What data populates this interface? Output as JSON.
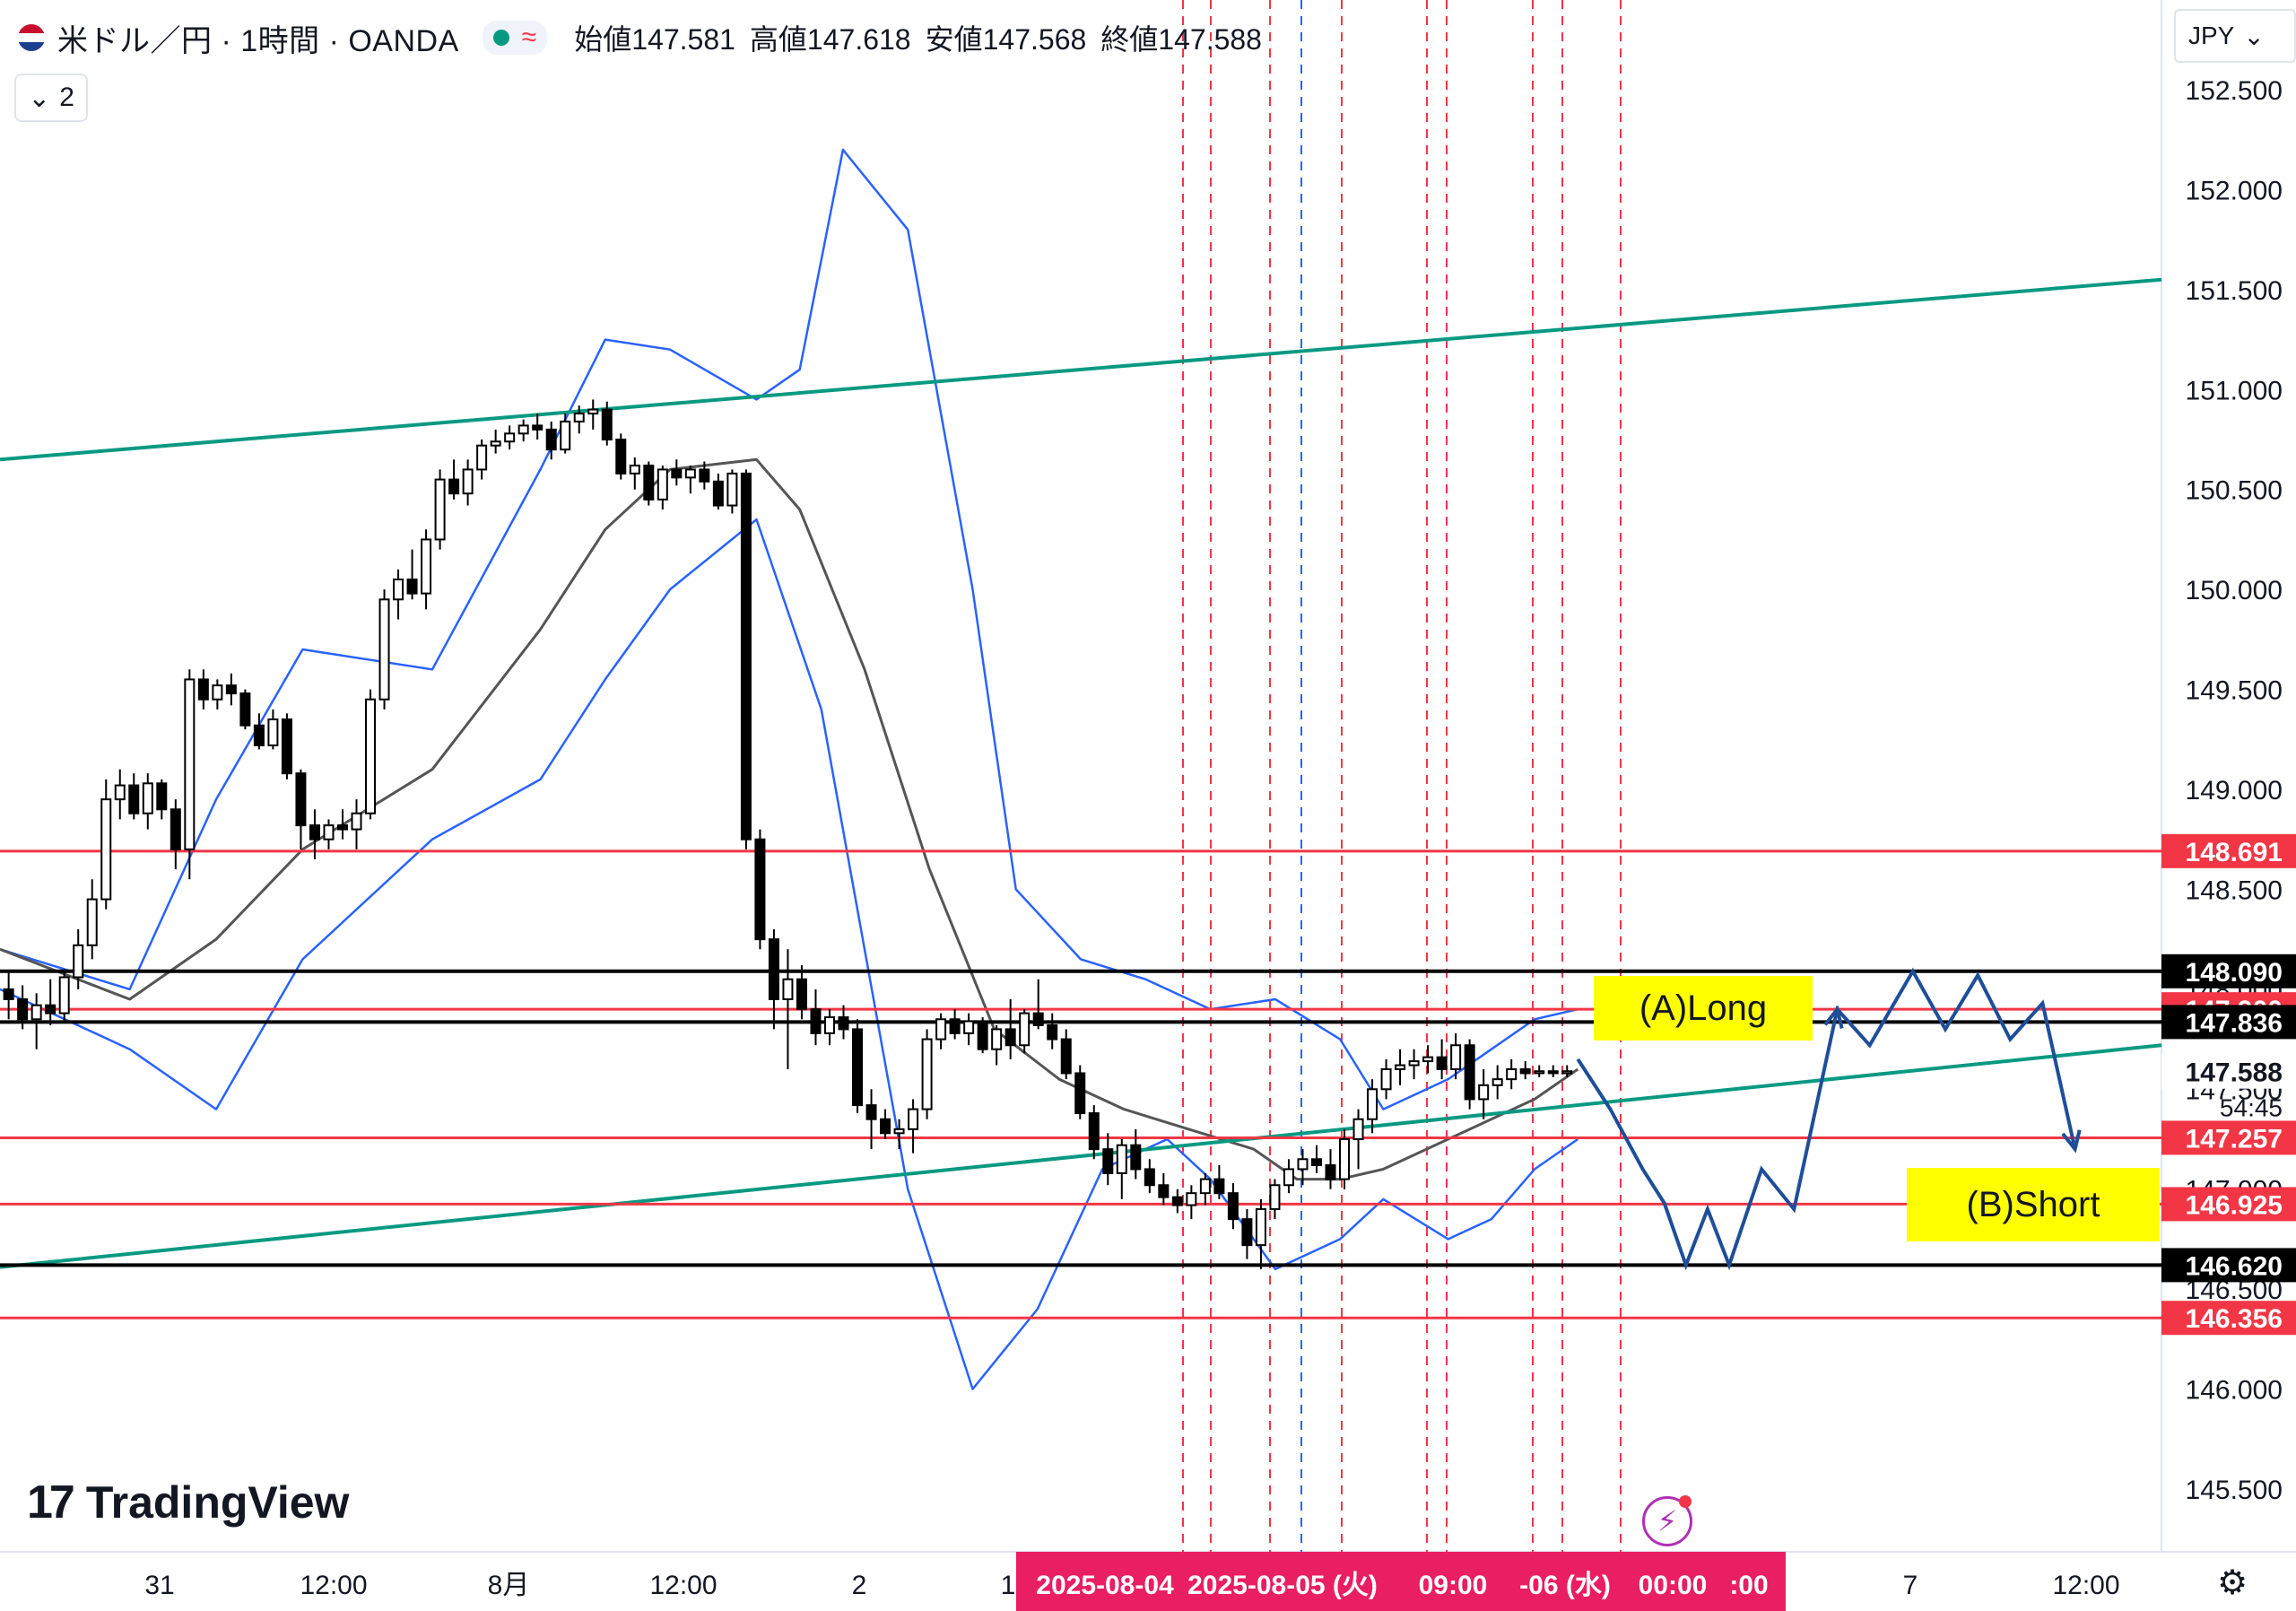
{
  "header": {
    "title": "米ドル／円 · 1時間 · OANDA",
    "collapse_label": "2",
    "ohlc": [
      {
        "label": "始値",
        "value": "147.581"
      },
      {
        "label": "高値",
        "value": "147.618"
      },
      {
        "label": "安値",
        "value": "147.568"
      },
      {
        "label": "終値",
        "value": "147.588"
      }
    ]
  },
  "currency_button": "JPY",
  "watermark": "TradingView",
  "countdown": "54:45",
  "colors": {
    "up_candle": "#ffffff",
    "down_candle": "#000000",
    "bollinger": "#2962ff",
    "sma": "#555555",
    "trendline": "#089981",
    "red_level": "#f23645",
    "black_level": "#000000",
    "projection_arrow": "#1f4e99",
    "annotation_bg": "#ffff00",
    "crosshair_date_bg": "#e91e63"
  },
  "chart_data": {
    "type": "candlestick",
    "symbol": "USDJPY",
    "timeframe": "1時間",
    "y_axis": {
      "range": [
        145.3,
        152.7
      ],
      "ticks": [
        "145.500",
        "146.000",
        "146.500",
        "147.000",
        "147.500",
        "148.000",
        "148.500",
        "149.000",
        "149.500",
        "150.000",
        "150.500",
        "151.000",
        "151.500",
        "152.000",
        "152.500"
      ]
    },
    "x_axis": {
      "ticks": [
        "31",
        "12:00",
        "8月",
        "12:00",
        "2",
        "1",
        "7",
        "12:00"
      ],
      "crosshair_labels": [
        "2025-08-04",
        "2025-08-05 (火)",
        "09:00",
        "-06 (水)",
        "00:00",
        ":00"
      ]
    },
    "horizontal_levels": [
      {
        "price": 148.691,
        "label": "148.691",
        "color": "red"
      },
      {
        "price": 148.09,
        "label": "148.090",
        "color": "black"
      },
      {
        "price": 147.9,
        "label": "147.900",
        "color": "red"
      },
      {
        "price": 147.836,
        "label": "147.836",
        "color": "black"
      },
      {
        "price": 147.588,
        "label": "147.588",
        "color": "current"
      },
      {
        "price": 147.257,
        "label": "147.257",
        "color": "red"
      },
      {
        "price": 146.925,
        "label": "146.925",
        "color": "red"
      },
      {
        "price": 146.62,
        "label": "146.620",
        "color": "black"
      },
      {
        "price": 146.356,
        "label": "146.356",
        "color": "red"
      }
    ],
    "trendlines": [
      {
        "name": "upper channel",
        "from": {
          "x": 0,
          "price": 150.65
        },
        "to": {
          "x": 1,
          "price": 151.55
        }
      },
      {
        "name": "lower channel",
        "from": {
          "x": 0,
          "price": 146.61
        },
        "to": {
          "x": 1,
          "price": 147.72
        }
      }
    ],
    "annotations": [
      {
        "text": "(A)Long"
      },
      {
        "text": "(B)Short"
      }
    ],
    "candles": [
      [
        148.0,
        148.09,
        147.85,
        147.95
      ],
      [
        147.95,
        148.02,
        147.8,
        147.85
      ],
      [
        147.85,
        147.98,
        147.7,
        147.92
      ],
      [
        147.92,
        148.05,
        147.82,
        147.88
      ],
      [
        147.88,
        148.1,
        147.84,
        148.06
      ],
      [
        148.06,
        148.3,
        148.0,
        148.22
      ],
      [
        148.22,
        148.55,
        148.15,
        148.45
      ],
      [
        148.45,
        149.05,
        148.4,
        148.95
      ],
      [
        148.95,
        149.1,
        148.85,
        149.02
      ],
      [
        149.02,
        149.08,
        148.85,
        148.88
      ],
      [
        148.88,
        149.08,
        148.8,
        149.03
      ],
      [
        149.03,
        149.05,
        148.85,
        148.9
      ],
      [
        148.9,
        148.95,
        148.6,
        148.7
      ],
      [
        148.7,
        149.6,
        148.55,
        149.55
      ],
      [
        149.55,
        149.6,
        149.4,
        149.45
      ],
      [
        149.45,
        149.55,
        149.4,
        149.52
      ],
      [
        149.52,
        149.58,
        149.42,
        149.48
      ],
      [
        149.48,
        149.5,
        149.3,
        149.32
      ],
      [
        149.32,
        149.38,
        149.2,
        149.22
      ],
      [
        149.22,
        149.4,
        149.2,
        149.35
      ],
      [
        149.35,
        149.38,
        149.05,
        149.08
      ],
      [
        149.08,
        149.1,
        148.7,
        148.82
      ],
      [
        148.82,
        148.9,
        148.65,
        148.75
      ],
      [
        148.75,
        148.85,
        148.7,
        148.82
      ],
      [
        148.82,
        148.9,
        148.75,
        148.8
      ],
      [
        148.8,
        148.95,
        148.7,
        148.88
      ],
      [
        148.88,
        149.5,
        148.85,
        149.45
      ],
      [
        149.45,
        150.0,
        149.4,
        149.95
      ],
      [
        149.95,
        150.1,
        149.85,
        150.05
      ],
      [
        150.05,
        150.2,
        149.95,
        149.98
      ],
      [
        149.98,
        150.3,
        149.9,
        150.25
      ],
      [
        150.25,
        150.6,
        150.2,
        150.55
      ],
      [
        150.55,
        150.65,
        150.45,
        150.48
      ],
      [
        150.48,
        150.65,
        150.42,
        150.6
      ],
      [
        150.6,
        150.75,
        150.55,
        150.72
      ],
      [
        150.72,
        150.8,
        150.68,
        150.74
      ],
      [
        150.74,
        150.82,
        150.7,
        150.78
      ],
      [
        150.78,
        150.85,
        150.74,
        150.82
      ],
      [
        150.82,
        150.88,
        150.75,
        150.8
      ],
      [
        150.8,
        150.84,
        150.65,
        150.7
      ],
      [
        150.7,
        150.88,
        150.68,
        150.84
      ],
      [
        150.84,
        150.92,
        150.78,
        150.88
      ],
      [
        150.88,
        150.95,
        150.8,
        150.9
      ],
      [
        150.9,
        150.94,
        150.72,
        150.75
      ],
      [
        150.75,
        150.78,
        150.55,
        150.58
      ],
      [
        150.58,
        150.66,
        150.5,
        150.62
      ],
      [
        150.62,
        150.64,
        150.42,
        150.45
      ],
      [
        150.45,
        150.62,
        150.4,
        150.6
      ],
      [
        150.6,
        150.65,
        150.52,
        150.56
      ],
      [
        150.56,
        150.62,
        150.48,
        150.6
      ],
      [
        150.6,
        150.64,
        150.5,
        150.54
      ],
      [
        150.54,
        150.58,
        150.4,
        150.42
      ],
      [
        150.42,
        150.6,
        150.38,
        150.58
      ],
      [
        150.58,
        150.6,
        148.7,
        148.75
      ],
      [
        148.75,
        148.8,
        148.2,
        148.25
      ],
      [
        148.25,
        148.3,
        147.8,
        147.95
      ],
      [
        147.95,
        148.2,
        147.6,
        148.05
      ],
      [
        148.05,
        148.12,
        147.85,
        147.9
      ],
      [
        147.9,
        148.0,
        147.72,
        147.78
      ],
      [
        147.78,
        147.9,
        147.72,
        147.86
      ],
      [
        147.86,
        147.92,
        147.75,
        147.8
      ],
      [
        147.8,
        147.85,
        147.38,
        147.42
      ],
      [
        147.42,
        147.5,
        147.2,
        147.35
      ],
      [
        147.35,
        147.4,
        147.25,
        147.28
      ],
      [
        147.28,
        147.35,
        147.2,
        147.3
      ],
      [
        147.3,
        147.45,
        147.18,
        147.4
      ],
      [
        147.4,
        147.8,
        147.35,
        147.75
      ],
      [
        147.75,
        147.88,
        147.7,
        147.85
      ],
      [
        147.85,
        147.9,
        147.75,
        147.78
      ],
      [
        147.78,
        147.88,
        147.72,
        147.84
      ],
      [
        147.84,
        147.86,
        147.68,
        147.7
      ],
      [
        147.7,
        147.82,
        147.62,
        147.8
      ],
      [
        147.8,
        147.95,
        147.65,
        147.72
      ],
      [
        147.72,
        147.9,
        147.68,
        147.88
      ],
      [
        147.88,
        148.05,
        147.8,
        147.82
      ],
      [
        147.82,
        147.88,
        147.7,
        147.75
      ],
      [
        147.75,
        147.8,
        147.55,
        147.58
      ],
      [
        147.58,
        147.62,
        147.35,
        147.38
      ],
      [
        147.38,
        147.42,
        147.15,
        147.2
      ],
      [
        147.2,
        147.28,
        147.02,
        147.08
      ],
      [
        147.08,
        147.25,
        146.95,
        147.22
      ],
      [
        147.22,
        147.3,
        147.05,
        147.1
      ],
      [
        147.1,
        147.15,
        146.98,
        147.02
      ],
      [
        147.02,
        147.08,
        146.92,
        146.96
      ],
      [
        146.96,
        147.0,
        146.88,
        146.92
      ],
      [
        146.92,
        147.02,
        146.85,
        146.98
      ],
      [
        146.98,
        147.08,
        146.92,
        147.05
      ],
      [
        147.05,
        147.12,
        146.95,
        146.98
      ],
      [
        146.98,
        147.03,
        146.8,
        146.85
      ],
      [
        146.85,
        146.9,
        146.65,
        146.72
      ],
      [
        146.72,
        146.95,
        146.6,
        146.9
      ],
      [
        146.9,
        147.05,
        146.85,
        147.02
      ],
      [
        147.02,
        147.15,
        146.98,
        147.1
      ],
      [
        147.1,
        147.2,
        147.02,
        147.15
      ],
      [
        147.15,
        147.22,
        147.08,
        147.12
      ],
      [
        147.12,
        147.2,
        147.0,
        147.05
      ],
      [
        147.05,
        147.3,
        147.0,
        147.25
      ],
      [
        147.25,
        147.4,
        147.1,
        147.35
      ],
      [
        147.35,
        147.55,
        147.28,
        147.5
      ],
      [
        147.5,
        147.65,
        147.45,
        147.6
      ],
      [
        147.6,
        147.7,
        147.52,
        147.62
      ],
      [
        147.62,
        147.7,
        147.55,
        147.64
      ],
      [
        147.64,
        147.72,
        147.58,
        147.66
      ],
      [
        147.66,
        147.75,
        147.55,
        147.6
      ],
      [
        147.6,
        147.78,
        147.55,
        147.72
      ],
      [
        147.72,
        147.75,
        147.4,
        147.45
      ],
      [
        147.45,
        147.6,
        147.35,
        147.52
      ],
      [
        147.52,
        147.62,
        147.45,
        147.55
      ],
      [
        147.55,
        147.65,
        147.5,
        147.6
      ],
      [
        147.6,
        147.64,
        147.55,
        147.58
      ],
      [
        147.58,
        147.62,
        147.56,
        147.59
      ],
      [
        147.59,
        147.62,
        147.56,
        147.58
      ],
      [
        147.58,
        147.62,
        147.56,
        147.59
      ]
    ],
    "bollinger_upper": [
      [
        0,
        148.2
      ],
      [
        0.06,
        148.0
      ],
      [
        0.1,
        148.95
      ],
      [
        0.14,
        149.7
      ],
      [
        0.2,
        149.6
      ],
      [
        0.25,
        150.6
      ],
      [
        0.28,
        151.25
      ],
      [
        0.31,
        151.2
      ],
      [
        0.35,
        150.95
      ],
      [
        0.37,
        151.1
      ],
      [
        0.39,
        152.2
      ],
      [
        0.42,
        151.8
      ],
      [
        0.45,
        150.0
      ],
      [
        0.47,
        148.5
      ],
      [
        0.5,
        148.15
      ],
      [
        0.53,
        148.05
      ],
      [
        0.56,
        147.9
      ],
      [
        0.59,
        147.95
      ],
      [
        0.62,
        147.75
      ],
      [
        0.64,
        147.4
      ],
      [
        0.67,
        147.55
      ],
      [
        0.69,
        147.7
      ],
      [
        0.71,
        147.85
      ],
      [
        0.73,
        147.9
      ]
    ],
    "bollinger_lower": [
      [
        0,
        148.0
      ],
      [
        0.06,
        147.7
      ],
      [
        0.1,
        147.4
      ],
      [
        0.14,
        148.15
      ],
      [
        0.2,
        148.75
      ],
      [
        0.25,
        149.05
      ],
      [
        0.28,
        149.55
      ],
      [
        0.31,
        150.0
      ],
      [
        0.35,
        150.35
      ],
      [
        0.38,
        149.4
      ],
      [
        0.42,
        147.0
      ],
      [
        0.45,
        146.0
      ],
      [
        0.48,
        146.4
      ],
      [
        0.51,
        147.1
      ],
      [
        0.54,
        147.25
      ],
      [
        0.56,
        147.05
      ],
      [
        0.59,
        146.6
      ],
      [
        0.62,
        146.75
      ],
      [
        0.64,
        146.95
      ],
      [
        0.67,
        146.75
      ],
      [
        0.69,
        146.85
      ],
      [
        0.71,
        147.1
      ],
      [
        0.73,
        147.25
      ]
    ],
    "sma": [
      [
        0,
        148.2
      ],
      [
        0.06,
        147.95
      ],
      [
        0.1,
        148.25
      ],
      [
        0.14,
        148.7
      ],
      [
        0.2,
        149.1
      ],
      [
        0.25,
        149.8
      ],
      [
        0.28,
        150.3
      ],
      [
        0.31,
        150.6
      ],
      [
        0.35,
        150.65
      ],
      [
        0.37,
        150.4
      ],
      [
        0.4,
        149.6
      ],
      [
        0.43,
        148.6
      ],
      [
        0.46,
        147.8
      ],
      [
        0.49,
        147.55
      ],
      [
        0.52,
        147.4
      ],
      [
        0.55,
        147.3
      ],
      [
        0.58,
        147.2
      ],
      [
        0.6,
        147.05
      ],
      [
        0.62,
        147.05
      ],
      [
        0.64,
        147.1
      ],
      [
        0.66,
        147.2
      ],
      [
        0.69,
        147.35
      ],
      [
        0.71,
        147.45
      ],
      [
        0.73,
        147.6
      ]
    ],
    "projection_path": [
      [
        0.73,
        147.65
      ],
      [
        0.745,
        147.4
      ],
      [
        0.76,
        147.1
      ],
      [
        0.77,
        146.93
      ],
      [
        0.78,
        146.62
      ],
      [
        0.79,
        146.9
      ],
      [
        0.8,
        146.62
      ],
      [
        0.815,
        147.1
      ],
      [
        0.83,
        146.9
      ],
      [
        0.85,
        147.9
      ],
      [
        0.865,
        147.72
      ],
      [
        0.885,
        148.09
      ],
      [
        0.9,
        147.8
      ],
      [
        0.915,
        148.07
      ],
      [
        0.93,
        147.75
      ],
      [
        0.945,
        147.93
      ],
      [
        0.96,
        147.2
      ]
    ]
  }
}
